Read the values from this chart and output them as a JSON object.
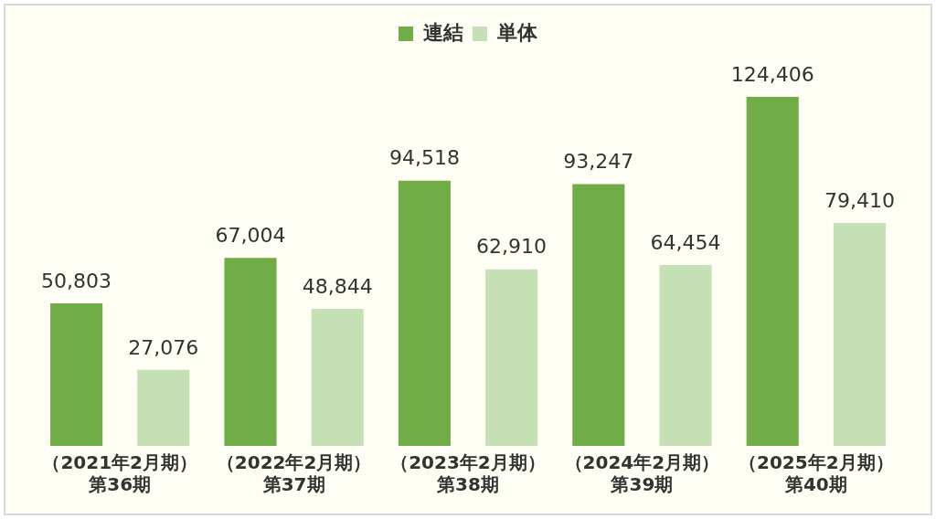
{
  "chart_data": {
    "type": "bar",
    "categories": [
      "（2021年2月期）第36期",
      "（2022年2月期）第37期",
      "（2023年2月期）第38期",
      "（2024年2月期）第39期",
      "（2025年2月期）第40期"
    ],
    "series": [
      {
        "name": "連結",
        "color": "#70ad47",
        "values": [
          50803,
          67004,
          94518,
          93247,
          124406
        ],
        "value_labels": [
          "50,803",
          "67,004",
          "94,518",
          "93,247",
          "124,406"
        ]
      },
      {
        "name": "単体",
        "color": "#c5e0b4",
        "values": [
          27076,
          48844,
          62910,
          64454,
          79410
        ],
        "value_labels": [
          "27,076",
          "48,844",
          "62,910",
          "64,454",
          "79,410"
        ]
      }
    ],
    "legend": "top",
    "grid": false
  }
}
